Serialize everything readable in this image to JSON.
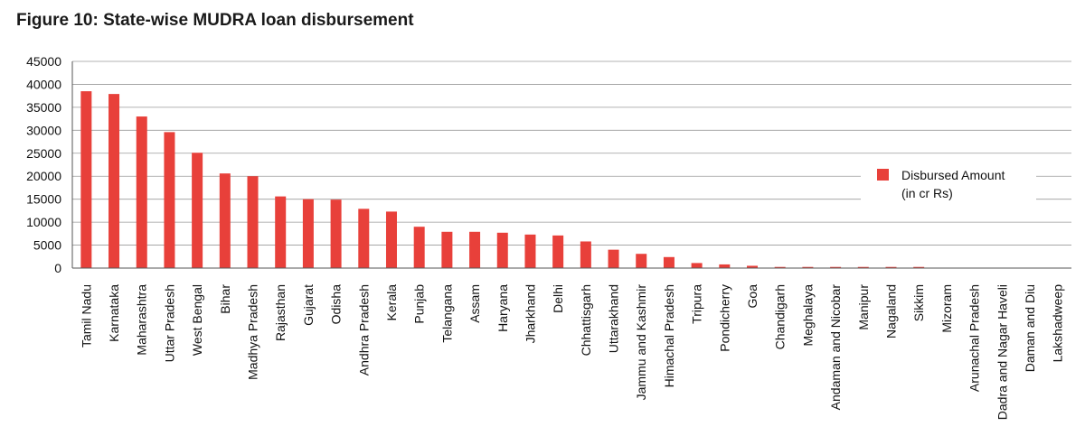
{
  "chart_data": {
    "type": "bar",
    "title": "Figure 10: State-wise MUDRA loan disbursement",
    "xlabel": "",
    "ylabel": "",
    "ylim": [
      0,
      45000
    ],
    "yticks": [
      0,
      5000,
      10000,
      15000,
      20000,
      25000,
      30000,
      35000,
      40000,
      45000
    ],
    "grid": true,
    "legend_position": "right",
    "bar_color": "#e8403a",
    "categories": [
      "Tamil Nadu",
      "Karnataka",
      "Maharashtra",
      "Uttar Pradesh",
      "West Bengal",
      "Bihar",
      "Madhya Pradesh",
      "Rajasthan",
      "Gujarat",
      "Odisha",
      "Andhra Pradesh",
      "Kerala",
      "Punjab",
      "Telangana",
      "Assam",
      "Haryana",
      "Jharkhand",
      "Delhi",
      "Chhattisgarh",
      "Uttarakhand",
      "Jammu and Kashmir",
      "Himachal Pradesh",
      "Tripura",
      "Pondicherry",
      "Goa",
      "Chandigarh",
      "Meghalaya",
      "Andaman and Nicobar",
      "Manipur",
      "Nagaland",
      "Sikkim",
      "Mizoram",
      "Arunachal Pradesh",
      "Dadra and Nagar Haveli",
      "Daman and Diu",
      "Lakshadweep"
    ],
    "series": [
      {
        "name": "Disbursed Amount (in cr Rs)",
        "legend_lines": [
          "Disbursed Amount",
          "(in cr Rs)"
        ],
        "values": [
          38500,
          37900,
          33000,
          29600,
          25100,
          20600,
          20000,
          15600,
          15000,
          14900,
          12900,
          12300,
          9000,
          7900,
          7900,
          7700,
          7300,
          7100,
          5800,
          4000,
          3100,
          2400,
          1100,
          800,
          500,
          250,
          250,
          250,
          250,
          250,
          250,
          60,
          60,
          40,
          30,
          20
        ]
      }
    ]
  }
}
